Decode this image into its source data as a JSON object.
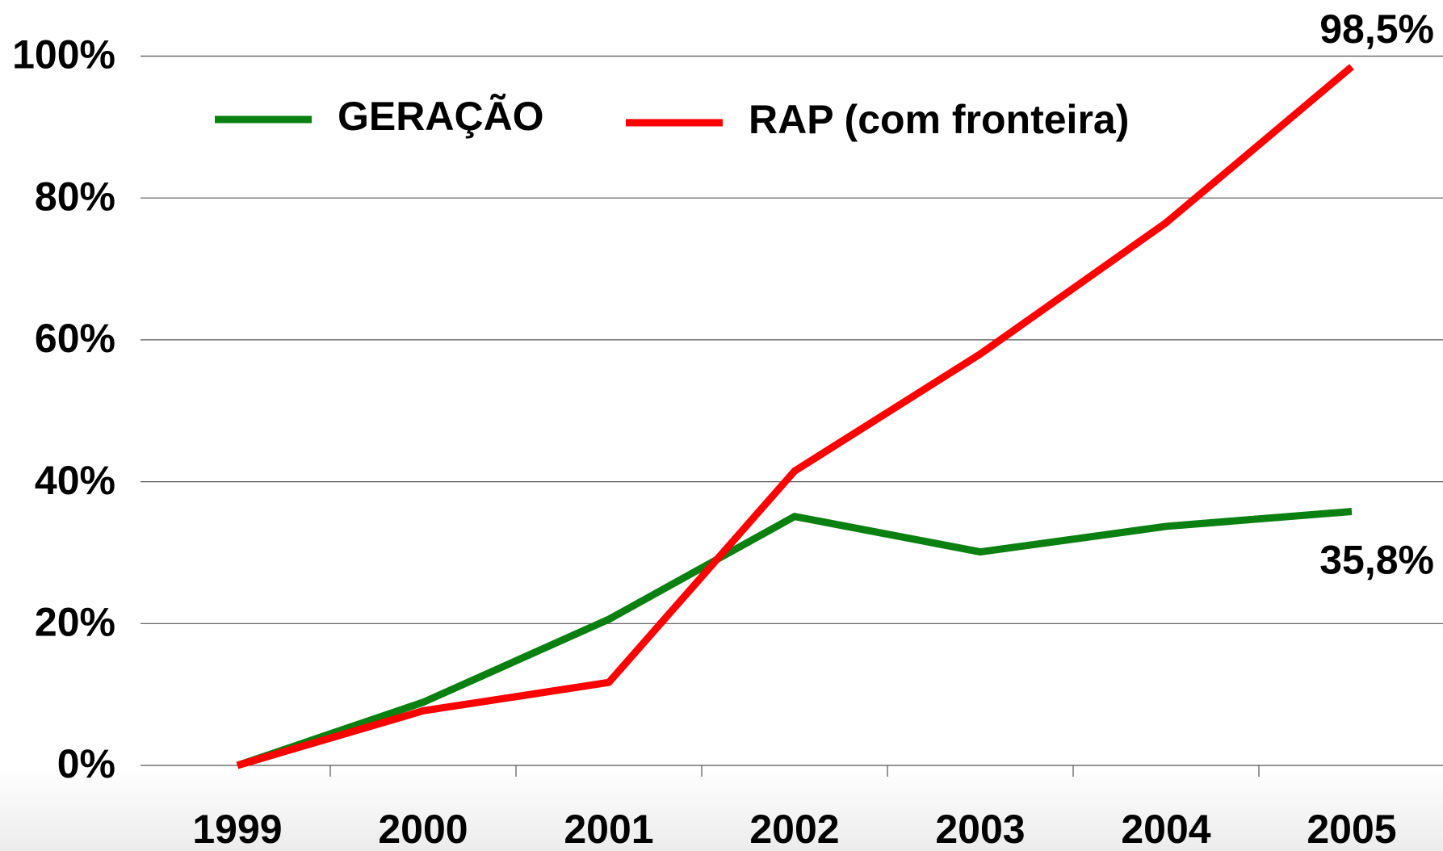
{
  "chart_data": {
    "type": "line",
    "categories": [
      "1999",
      "2000",
      "2001",
      "2002",
      "2003",
      "2004",
      "2005"
    ],
    "series": [
      {
        "name": "GERAÇÃO",
        "color": "#0a8010",
        "values": [
          0,
          8.9,
          20.6,
          35.1,
          30.1,
          33.7,
          35.8
        ],
        "value_labels": [
          null,
          null,
          null,
          null,
          null,
          null,
          "35,8%"
        ]
      },
      {
        "name": "RAP (com fronteira)",
        "color": "#ff0000",
        "values": [
          0,
          7.7,
          11.7,
          41.5,
          58.0,
          76.5,
          98.5
        ],
        "value_labels": [
          null,
          null,
          null,
          null,
          null,
          null,
          "98,5%"
        ]
      }
    ],
    "ylim": [
      0,
      100
    ],
    "yticks": [
      {
        "value": 0,
        "label": "0%"
      },
      {
        "value": 20,
        "label": "20%"
      },
      {
        "value": 40,
        "label": "40%"
      },
      {
        "value": 60,
        "label": "60%"
      },
      {
        "value": 80,
        "label": "80%"
      },
      {
        "value": 100,
        "label": "100%"
      }
    ],
    "grid": true,
    "legend": "top"
  }
}
